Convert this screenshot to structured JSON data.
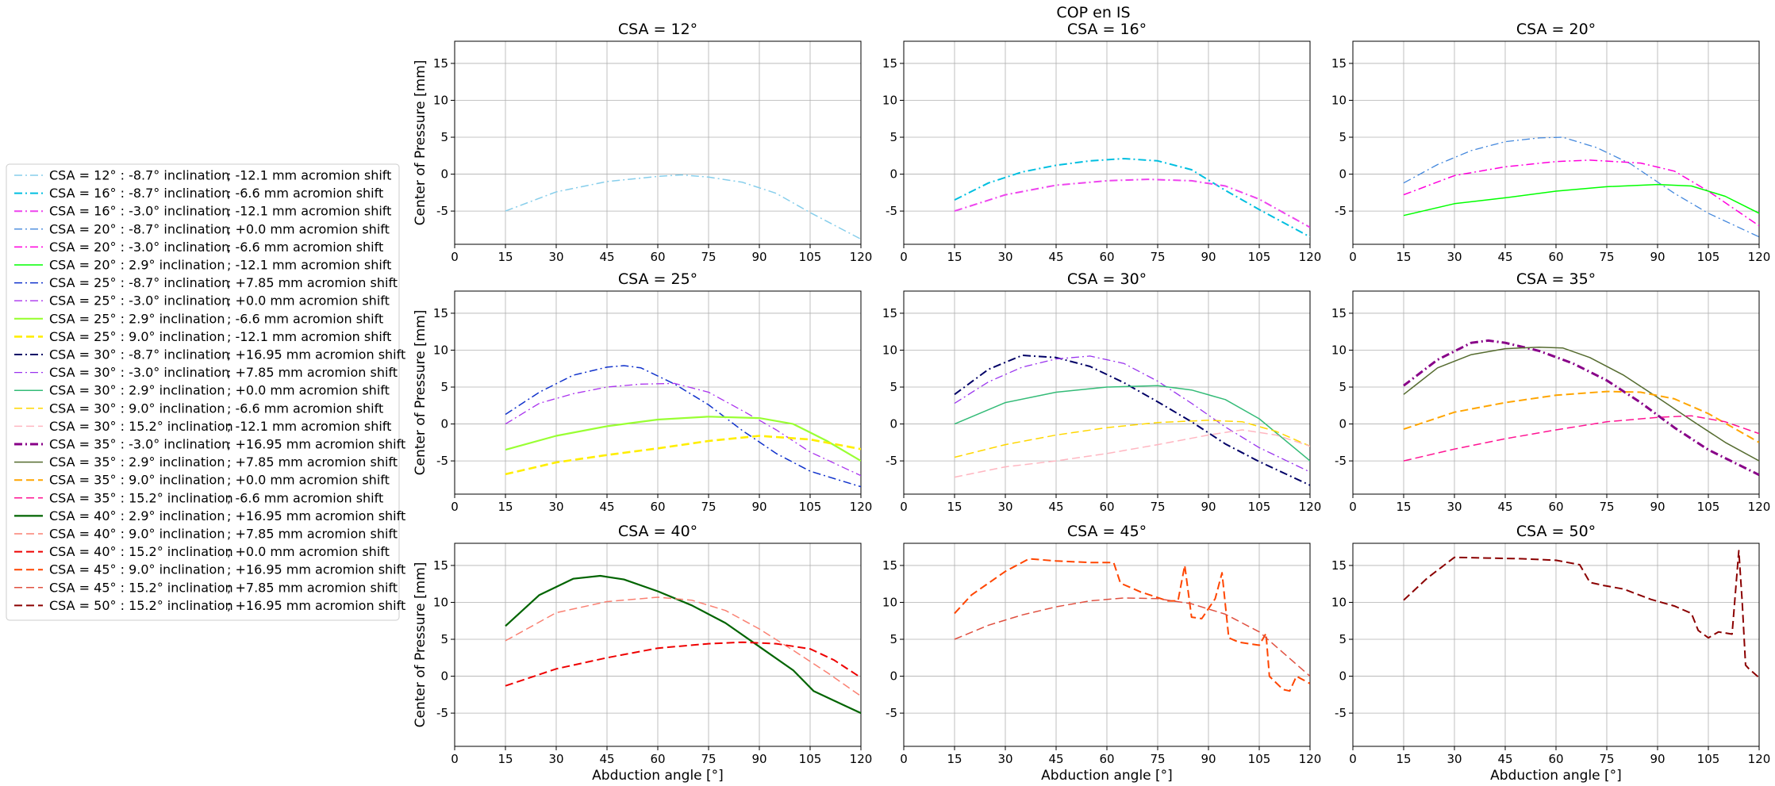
{
  "suptitle": "COP en IS",
  "chart_data": {
    "type": "line",
    "xlabel": "Abduction angle [°]",
    "ylabel": "Center of Pressure [mm]",
    "xlim": [
      0,
      120
    ],
    "ylim": [
      -9.5,
      18
    ],
    "xticks": [
      0,
      15,
      30,
      45,
      60,
      75,
      90,
      105,
      120
    ],
    "yticks": [
      -5,
      0,
      5,
      10,
      15
    ],
    "grid": true,
    "legend_placement": "left",
    "series": [
      {
        "name": "CSA = 12° : -8.7° inclination    ; -12.1 mm acromion shift",
        "panel": 0,
        "color": "#87ceeb",
        "dash": "10,4,2,4",
        "width": 1.5,
        "x": [
          15,
          30,
          45,
          60,
          67,
          75,
          85,
          95,
          105,
          120
        ],
        "y": [
          -5,
          -2.4,
          -1,
          -0.3,
          -0.1,
          -0.4,
          -1.1,
          -2.6,
          -5.2,
          -8.8
        ]
      },
      {
        "name": "CSA = 16° : -8.7° inclination    ; -6.6 mm acromion shift",
        "panel": 1,
        "color": "#00bfe0",
        "dash": "10,4,2,4",
        "width": 2,
        "x": [
          15,
          25,
          35,
          45,
          55,
          65,
          75,
          85,
          95,
          105,
          120
        ],
        "y": [
          -3.5,
          -1.2,
          0.3,
          1.2,
          1.8,
          2.1,
          1.8,
          0.6,
          -2.2,
          -4.8,
          -8.5
        ]
      },
      {
        "name": "CSA = 16° : -3.0° inclination    ; -12.1 mm acromion shift",
        "panel": 1,
        "color": "#ee44ee",
        "dash": "10,4,2,4",
        "width": 2,
        "x": [
          15,
          30,
          45,
          60,
          72,
          85,
          95,
          105,
          120
        ],
        "y": [
          -5,
          -2.8,
          -1.5,
          -0.9,
          -0.7,
          -0.9,
          -1.6,
          -3.4,
          -7.2
        ]
      },
      {
        "name": "CSA = 20° : -8.7° inclination    ; +0.0 mm acromion shift",
        "panel": 2,
        "color": "#4488dd",
        "dash": "10,4,2,4",
        "width": 1.3,
        "x": [
          15,
          25,
          35,
          45,
          55,
          62,
          72,
          82,
          95,
          105,
          120
        ],
        "y": [
          -1.2,
          1.3,
          3.2,
          4.4,
          4.9,
          5,
          3.6,
          1.4,
          -2.6,
          -5.3,
          -8.5
        ]
      },
      {
        "name": "CSA = 20° : -3.0° inclination    ; -6.6 mm acromion shift",
        "panel": 2,
        "color": "#ff00dd",
        "dash": "10,4,2,4",
        "width": 1.5,
        "x": [
          15,
          30,
          45,
          60,
          70,
          85,
          95,
          105,
          120
        ],
        "y": [
          -2.8,
          -0.2,
          1,
          1.7,
          1.9,
          1.5,
          0.4,
          -2.3,
          -7
        ]
      },
      {
        "name": "CSA = 20° : 2.9° inclination      ; -12.1 mm acromion shift",
        "panel": 2,
        "color": "#00ff00",
        "dash": "",
        "width": 1.5,
        "x": [
          15,
          30,
          45,
          60,
          75,
          90,
          100,
          110,
          120
        ],
        "y": [
          -5.6,
          -4,
          -3.2,
          -2.3,
          -1.7,
          -1.4,
          -1.6,
          -3,
          -5.3
        ]
      },
      {
        "name": "CSA = 25° : -8.7° inclination    ; +7.85 mm acromion shift",
        "panel": 3,
        "color": "#1133cc",
        "dash": "10,4,2,4",
        "width": 1.5,
        "x": [
          15,
          25,
          35,
          45,
          50,
          55,
          65,
          75,
          85,
          95,
          105,
          120
        ],
        "y": [
          1.3,
          4.3,
          6.6,
          7.7,
          7.9,
          7.6,
          5.4,
          2.6,
          -0.9,
          -4,
          -6.4,
          -8.5
        ]
      },
      {
        "name": "CSA = 25° : -3.0° inclination    ; +0.0 mm acromion shift",
        "panel": 3,
        "color": "#aa33ee",
        "dash": "10,4,2,4",
        "width": 1.3,
        "x": [
          15,
          25,
          35,
          45,
          55,
          65,
          75,
          85,
          95,
          105,
          120
        ],
        "y": [
          0,
          2.8,
          4.1,
          5,
          5.4,
          5.5,
          4.3,
          1.8,
          -0.8,
          -3.8,
          -7
        ]
      },
      {
        "name": "CSA = 25° : 2.9° inclination      ; -6.6 mm acromion shift",
        "panel": 3,
        "color": "#99ff33",
        "dash": "",
        "width": 2.2,
        "x": [
          15,
          30,
          45,
          60,
          75,
          90,
          100,
          110,
          120
        ],
        "y": [
          -3.5,
          -1.6,
          -0.3,
          0.6,
          1,
          0.8,
          0,
          -2.3,
          -5
        ]
      },
      {
        "name": "CSA = 25° : 9.0° inclination      ; -12.1 mm acromion shift",
        "panel": 3,
        "color": "#ffee00",
        "dash": "10,5",
        "width": 2.6,
        "x": [
          15,
          30,
          45,
          60,
          75,
          90,
          105,
          120
        ],
        "y": [
          -6.8,
          -5.2,
          -4.2,
          -3.3,
          -2.3,
          -1.6,
          -2.1,
          -3.4
        ]
      },
      {
        "name": "CSA = 30° : -8.7° inclination    ; +16.95 mm acromion shift",
        "panel": 4,
        "color": "#000066",
        "dash": "10,4,2,4",
        "width": 2,
        "x": [
          15,
          25,
          35,
          45,
          55,
          65,
          75,
          85,
          95,
          105,
          120
        ],
        "y": [
          4,
          7.4,
          9.3,
          9,
          7.8,
          5.6,
          3,
          0.3,
          -2.7,
          -5.1,
          -8.3
        ]
      },
      {
        "name": "CSA = 30° : -3.0° inclination    ; +7.85 mm acromion shift",
        "panel": 4,
        "color": "#9933ee",
        "dash": "10,4,2,4",
        "width": 1.3,
        "x": [
          15,
          25,
          35,
          45,
          55,
          65,
          75,
          85,
          95,
          105,
          120
        ],
        "y": [
          2.8,
          5.7,
          7.7,
          8.8,
          9.2,
          8.2,
          5.8,
          2.8,
          -0.4,
          -3.2,
          -6.5
        ]
      },
      {
        "name": "CSA = 30° : 2.9° inclination      ; +0.0 mm acromion shift",
        "panel": 4,
        "color": "#33bb77",
        "dash": "",
        "width": 1.5,
        "x": [
          15,
          30,
          45,
          60,
          75,
          85,
          95,
          105,
          120
        ],
        "y": [
          0,
          2.9,
          4.3,
          5,
          5.2,
          4.6,
          3.3,
          0.7,
          -5
        ]
      },
      {
        "name": "CSA = 30° : 9.0° inclination      ; -6.6 mm acromion shift",
        "panel": 4,
        "color": "#ffd700",
        "dash": "10,5",
        "width": 1.5,
        "x": [
          15,
          30,
          45,
          60,
          75,
          90,
          100,
          110,
          120
        ],
        "y": [
          -4.5,
          -2.8,
          -1.5,
          -0.5,
          0.2,
          0.5,
          0.3,
          -1,
          -3
        ]
      },
      {
        "name": "CSA = 30° : 15.2° inclination    ; -12.1 mm acromion shift",
        "panel": 4,
        "color": "#ffb6c1",
        "dash": "10,5",
        "width": 1.5,
        "x": [
          15,
          30,
          45,
          60,
          75,
          90,
          100,
          110,
          120
        ],
        "y": [
          -7.2,
          -5.8,
          -5,
          -4,
          -2.8,
          -1.5,
          -0.8,
          -1.5,
          -3
        ]
      },
      {
        "name": "CSA = 35° : -3.0° inclination    ; +16.95 mm acromion shift",
        "panel": 5,
        "color": "#880088",
        "dash": "10,4,2,4",
        "width": 3,
        "x": [
          15,
          25,
          35,
          40,
          45,
          55,
          65,
          75,
          85,
          95,
          105,
          120
        ],
        "y": [
          5.2,
          8.7,
          11,
          11.3,
          11,
          9.9,
          8.2,
          5.9,
          2.9,
          -0.5,
          -3.5,
          -6.9
        ]
      },
      {
        "name": "CSA = 35° : 2.9° inclination      ; +7.85 mm acromion shift",
        "panel": 5,
        "color": "#556b2f",
        "dash": "",
        "width": 1.5,
        "x": [
          15,
          25,
          35,
          45,
          55,
          62,
          70,
          80,
          90,
          100,
          110,
          120
        ],
        "y": [
          4,
          7.6,
          9.4,
          10.2,
          10.4,
          10.3,
          9,
          6.6,
          3.6,
          0.5,
          -2.5,
          -5
        ]
      },
      {
        "name": "CSA = 35° : 9.0° inclination      ; +0.0 mm acromion shift",
        "panel": 5,
        "color": "#ffa500",
        "dash": "10,5",
        "width": 2,
        "x": [
          15,
          30,
          45,
          60,
          75,
          85,
          95,
          105,
          120
        ],
        "y": [
          -0.7,
          1.6,
          2.9,
          3.9,
          4.4,
          4.3,
          3.4,
          1.4,
          -2.5
        ]
      },
      {
        "name": "CSA = 35° : 15.2° inclination    ; -6.6 mm acromion shift",
        "panel": 5,
        "color": "#ff1493",
        "dash": "10,5",
        "width": 1.5,
        "x": [
          15,
          30,
          45,
          60,
          75,
          90,
          100,
          110,
          120
        ],
        "y": [
          -5,
          -3.4,
          -2,
          -0.8,
          0.3,
          0.9,
          1.1,
          0.3,
          -1.3
        ]
      },
      {
        "name": "CSA = 40° : 2.9° inclination      ; +16.95 mm acromion shift",
        "panel": 6,
        "color": "#006400",
        "dash": "",
        "width": 2.2,
        "x": [
          15,
          25,
          35,
          43,
          50,
          60,
          70,
          80,
          90,
          100,
          106,
          112,
          120
        ],
        "y": [
          6.8,
          11,
          13.2,
          13.6,
          13.1,
          11.5,
          9.6,
          7.2,
          4,
          0.8,
          -2,
          -3.3,
          -5
        ]
      },
      {
        "name": "CSA = 40° : 9.0° inclination      ; +7.85 mm acromion shift",
        "panel": 6,
        "color": "#fa8072",
        "dash": "10,5",
        "width": 1.5,
        "x": [
          15,
          30,
          45,
          60,
          70,
          80,
          90,
          100,
          110,
          120
        ],
        "y": [
          4.8,
          8.6,
          10.1,
          10.7,
          10.3,
          8.9,
          6.4,
          3.5,
          0.5,
          -2.7
        ]
      },
      {
        "name": "CSA = 40° : 15.2° inclination    ; +0.0 mm acromion shift",
        "panel": 6,
        "color": "#ee0000",
        "dash": "10,5",
        "width": 2,
        "x": [
          15,
          30,
          45,
          60,
          75,
          85,
          95,
          105,
          112,
          120
        ],
        "y": [
          -1.3,
          1,
          2.5,
          3.8,
          4.4,
          4.6,
          4.4,
          3.7,
          2.2,
          -0.2
        ]
      },
      {
        "name": "CSA = 45° : 9.0° inclination      ; +16.95 mm acromion shift",
        "panel": 7,
        "color": "#ff4500",
        "dash": "10,5",
        "width": 2,
        "x": [
          15,
          20,
          30,
          37,
          45,
          55,
          62,
          64,
          70,
          78,
          81,
          83,
          85,
          88,
          92,
          94,
          96,
          99,
          102,
          105,
          107,
          108,
          112,
          114,
          116,
          118,
          120
        ],
        "y": [
          8.5,
          11,
          14.2,
          15.9,
          15.6,
          15.4,
          15.4,
          12.6,
          11.4,
          10.2,
          10.2,
          15,
          8,
          7.8,
          10.5,
          14,
          5.2,
          4.6,
          4.4,
          4.2,
          5.8,
          0,
          -1.8,
          -2,
          0,
          -0.5,
          -1
        ]
      },
      {
        "name": "CSA = 45° : 15.2° inclination    ; +7.85 mm acromion shift",
        "panel": 7,
        "color": "#e05040",
        "dash": "10,5",
        "width": 1.5,
        "x": [
          15,
          25,
          35,
          45,
          55,
          65,
          75,
          85,
          95,
          105,
          120
        ],
        "y": [
          5,
          6.9,
          8.3,
          9.4,
          10.2,
          10.6,
          10.5,
          9.8,
          8.4,
          6,
          0
        ]
      },
      {
        "name": "CSA = 50° : 15.2° inclination    ; +16.95 mm acromion shift",
        "panel": 8,
        "color": "#8b0000",
        "dash": "10,5",
        "width": 2,
        "x": [
          15,
          22,
          30,
          40,
          50,
          60,
          67,
          70,
          74,
          80,
          88,
          95,
          100,
          102,
          105,
          108,
          112,
          114,
          115,
          116,
          117,
          120
        ],
        "y": [
          10.3,
          13.3,
          16.1,
          16,
          15.9,
          15.7,
          15.1,
          12.7,
          12.3,
          11.8,
          10.4,
          9.5,
          8.5,
          6.2,
          5.2,
          6,
          5.7,
          17,
          10,
          1.5,
          1,
          -0.2
        ]
      }
    ]
  },
  "panels": [
    {
      "title": "CSA = 12°"
    },
    {
      "title": "CSA = 16°"
    },
    {
      "title": "CSA = 20°"
    },
    {
      "title": "CSA = 25°"
    },
    {
      "title": "CSA = 30°"
    },
    {
      "title": "CSA = 35°"
    },
    {
      "title": "CSA = 40°"
    },
    {
      "title": "CSA = 45°"
    },
    {
      "title": "CSA = 50°"
    }
  ]
}
